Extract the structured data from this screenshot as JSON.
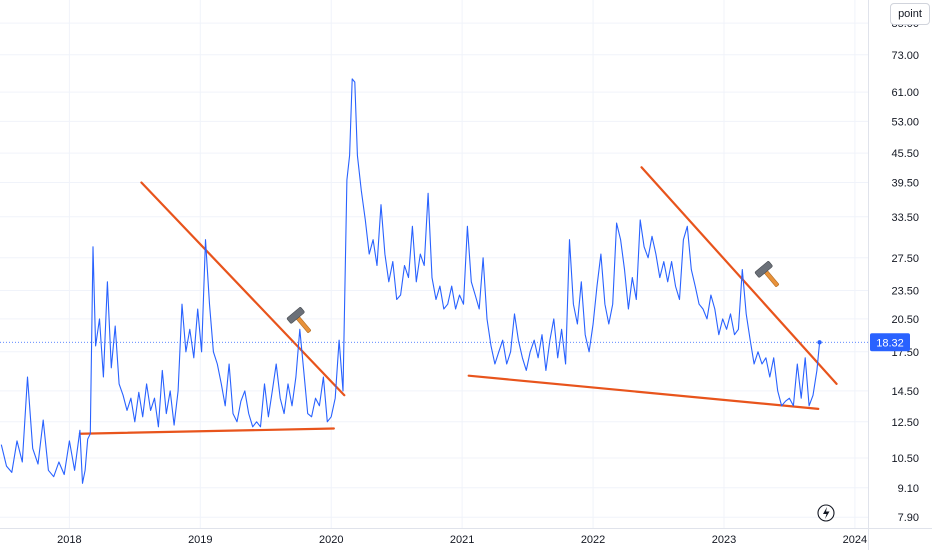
{
  "unit_button": {
    "label": "point"
  },
  "price_badge": {
    "label": "18.32",
    "color": "#2962ff"
  },
  "colors": {
    "series": "#2962ff",
    "trendline": "#e8541c",
    "grid": "#f0f3fa",
    "axis_text": "#131722"
  },
  "icons": [
    "hammer-icon",
    "hammer-icon",
    "hammer-icon",
    "lightning-icon"
  ],
  "chart_data": {
    "type": "line",
    "title": "",
    "xlabel": "",
    "ylabel": "",
    "y_scale": "log",
    "ylim": [
      7.5,
      95
    ],
    "xlim": [
      2017.47,
      2024.1
    ],
    "x_ticks": [
      {
        "value": 2018,
        "label": "2018"
      },
      {
        "value": 2019,
        "label": "2019"
      },
      {
        "value": 2020,
        "label": "2020"
      },
      {
        "value": 2021,
        "label": "2021"
      },
      {
        "value": 2022,
        "label": "2022"
      },
      {
        "value": 2023,
        "label": "2023"
      },
      {
        "value": 2024,
        "label": "2024"
      }
    ],
    "y_ticks": [
      {
        "value": 85.0,
        "label": "85.00"
      },
      {
        "value": 73.0,
        "label": "73.00"
      },
      {
        "value": 61.0,
        "label": "61.00"
      },
      {
        "value": 53.0,
        "label": "53.00"
      },
      {
        "value": 45.5,
        "label": "45.50"
      },
      {
        "value": 39.5,
        "label": "39.50"
      },
      {
        "value": 33.5,
        "label": "33.50"
      },
      {
        "value": 27.5,
        "label": "27.50"
      },
      {
        "value": 23.5,
        "label": "23.50"
      },
      {
        "value": 20.5,
        "label": "20.50"
      },
      {
        "value": 17.5,
        "label": "17.50"
      },
      {
        "value": 14.5,
        "label": "14.50"
      },
      {
        "value": 12.5,
        "label": "12.50"
      },
      {
        "value": 10.5,
        "label": "10.50"
      },
      {
        "value": 9.1,
        "label": "9.10"
      },
      {
        "value": 7.9,
        "label": "7.90"
      }
    ],
    "current_value": 18.32,
    "series": [
      {
        "values": [
          [
            2017.48,
            11.2
          ],
          [
            2017.52,
            10.1
          ],
          [
            2017.56,
            9.8
          ],
          [
            2017.6,
            11.4
          ],
          [
            2017.64,
            10.3
          ],
          [
            2017.68,
            15.5
          ],
          [
            2017.72,
            11.0
          ],
          [
            2017.76,
            10.2
          ],
          [
            2017.8,
            12.6
          ],
          [
            2017.84,
            9.9
          ],
          [
            2017.88,
            9.6
          ],
          [
            2017.92,
            10.3
          ],
          [
            2017.96,
            9.7
          ],
          [
            2018.0,
            11.4
          ],
          [
            2018.04,
            9.9
          ],
          [
            2018.08,
            12.0
          ],
          [
            2018.1,
            9.3
          ],
          [
            2018.12,
            9.9
          ],
          [
            2018.14,
            11.5
          ],
          [
            2018.16,
            11.8
          ],
          [
            2018.18,
            29.0
          ],
          [
            2018.2,
            18.0
          ],
          [
            2018.23,
            20.5
          ],
          [
            2018.26,
            15.5
          ],
          [
            2018.29,
            24.5
          ],
          [
            2018.32,
            16.2
          ],
          [
            2018.35,
            19.8
          ],
          [
            2018.38,
            15.0
          ],
          [
            2018.41,
            14.2
          ],
          [
            2018.44,
            13.2
          ],
          [
            2018.47,
            14.0
          ],
          [
            2018.5,
            12.5
          ],
          [
            2018.53,
            14.4
          ],
          [
            2018.56,
            12.8
          ],
          [
            2018.59,
            15.0
          ],
          [
            2018.62,
            13.2
          ],
          [
            2018.65,
            14.0
          ],
          [
            2018.68,
            12.2
          ],
          [
            2018.71,
            16.0
          ],
          [
            2018.74,
            13.0
          ],
          [
            2018.77,
            14.5
          ],
          [
            2018.8,
            12.3
          ],
          [
            2018.83,
            14.5
          ],
          [
            2018.86,
            22.0
          ],
          [
            2018.89,
            17.5
          ],
          [
            2018.92,
            19.5
          ],
          [
            2018.95,
            17.0
          ],
          [
            2018.98,
            21.5
          ],
          [
            2019.01,
            17.5
          ],
          [
            2019.04,
            30.0
          ],
          [
            2019.07,
            22.0
          ],
          [
            2019.1,
            17.5
          ],
          [
            2019.13,
            16.5
          ],
          [
            2019.16,
            15.0
          ],
          [
            2019.19,
            13.5
          ],
          [
            2019.22,
            16.5
          ],
          [
            2019.25,
            13.0
          ],
          [
            2019.28,
            12.5
          ],
          [
            2019.31,
            13.8
          ],
          [
            2019.34,
            14.5
          ],
          [
            2019.37,
            13.0
          ],
          [
            2019.4,
            12.2
          ],
          [
            2019.43,
            12.5
          ],
          [
            2019.46,
            12.2
          ],
          [
            2019.49,
            15.0
          ],
          [
            2019.52,
            12.8
          ],
          [
            2019.55,
            14.5
          ],
          [
            2019.58,
            16.5
          ],
          [
            2019.61,
            14.0
          ],
          [
            2019.64,
            13.0
          ],
          [
            2019.67,
            15.0
          ],
          [
            2019.7,
            13.5
          ],
          [
            2019.73,
            15.5
          ],
          [
            2019.76,
            19.5
          ],
          [
            2019.79,
            16.0
          ],
          [
            2019.82,
            13.0
          ],
          [
            2019.85,
            12.8
          ],
          [
            2019.88,
            14.0
          ],
          [
            2019.91,
            13.5
          ],
          [
            2019.94,
            15.5
          ],
          [
            2019.97,
            12.5
          ],
          [
            2020.0,
            12.8
          ],
          [
            2020.03,
            14.0
          ],
          [
            2020.06,
            18.5
          ],
          [
            2020.09,
            14.5
          ],
          [
            2020.12,
            40.0
          ],
          [
            2020.14,
            45.0
          ],
          [
            2020.16,
            65.0
          ],
          [
            2020.18,
            64.0
          ],
          [
            2020.2,
            45.0
          ],
          [
            2020.23,
            38.0
          ],
          [
            2020.26,
            33.0
          ],
          [
            2020.29,
            28.0
          ],
          [
            2020.32,
            30.0
          ],
          [
            2020.35,
            26.5
          ],
          [
            2020.38,
            35.5
          ],
          [
            2020.41,
            28.0
          ],
          [
            2020.44,
            24.5
          ],
          [
            2020.47,
            27.0
          ],
          [
            2020.5,
            22.5
          ],
          [
            2020.53,
            23.0
          ],
          [
            2020.56,
            26.5
          ],
          [
            2020.59,
            25.0
          ],
          [
            2020.62,
            32.0
          ],
          [
            2020.65,
            24.5
          ],
          [
            2020.68,
            28.0
          ],
          [
            2020.71,
            26.5
          ],
          [
            2020.74,
            37.5
          ],
          [
            2020.77,
            25.0
          ],
          [
            2020.8,
            22.5
          ],
          [
            2020.83,
            24.0
          ],
          [
            2020.86,
            21.5
          ],
          [
            2020.89,
            22.0
          ],
          [
            2020.92,
            24.0
          ],
          [
            2020.95,
            21.5
          ],
          [
            2020.98,
            23.0
          ],
          [
            2021.01,
            22.0
          ],
          [
            2021.04,
            32.0
          ],
          [
            2021.07,
            24.5
          ],
          [
            2021.1,
            23.0
          ],
          [
            2021.13,
            21.5
          ],
          [
            2021.16,
            27.5
          ],
          [
            2021.19,
            20.5
          ],
          [
            2021.22,
            18.0
          ],
          [
            2021.25,
            16.5
          ],
          [
            2021.28,
            17.5
          ],
          [
            2021.31,
            18.5
          ],
          [
            2021.34,
            16.5
          ],
          [
            2021.37,
            17.5
          ],
          [
            2021.4,
            21.0
          ],
          [
            2021.43,
            18.5
          ],
          [
            2021.46,
            17.0
          ],
          [
            2021.49,
            16.0
          ],
          [
            2021.52,
            17.5
          ],
          [
            2021.55,
            18.5
          ],
          [
            2021.58,
            17.0
          ],
          [
            2021.61,
            19.0
          ],
          [
            2021.64,
            16.0
          ],
          [
            2021.67,
            18.5
          ],
          [
            2021.7,
            20.5
          ],
          [
            2021.73,
            17.0
          ],
          [
            2021.76,
            19.5
          ],
          [
            2021.79,
            16.5
          ],
          [
            2021.82,
            30.0
          ],
          [
            2021.85,
            22.0
          ],
          [
            2021.88,
            20.0
          ],
          [
            2021.91,
            24.5
          ],
          [
            2021.94,
            19.0
          ],
          [
            2021.97,
            17.5
          ],
          [
            2022.0,
            20.0
          ],
          [
            2022.03,
            24.0
          ],
          [
            2022.06,
            28.0
          ],
          [
            2022.09,
            22.0
          ],
          [
            2022.12,
            20.0
          ],
          [
            2022.15,
            22.0
          ],
          [
            2022.18,
            32.5
          ],
          [
            2022.21,
            30.0
          ],
          [
            2022.24,
            26.0
          ],
          [
            2022.27,
            21.5
          ],
          [
            2022.3,
            25.0
          ],
          [
            2022.33,
            22.5
          ],
          [
            2022.36,
            33.0
          ],
          [
            2022.39,
            29.0
          ],
          [
            2022.42,
            27.5
          ],
          [
            2022.45,
            30.5
          ],
          [
            2022.48,
            28.0
          ],
          [
            2022.51,
            25.0
          ],
          [
            2022.54,
            27.0
          ],
          [
            2022.57,
            24.5
          ],
          [
            2022.6,
            27.0
          ],
          [
            2022.63,
            24.0
          ],
          [
            2022.66,
            22.5
          ],
          [
            2022.69,
            30.0
          ],
          [
            2022.72,
            32.0
          ],
          [
            2022.75,
            26.0
          ],
          [
            2022.78,
            24.0
          ],
          [
            2022.81,
            22.0
          ],
          [
            2022.84,
            21.5
          ],
          [
            2022.87,
            20.5
          ],
          [
            2022.9,
            23.0
          ],
          [
            2022.93,
            21.5
          ],
          [
            2022.96,
            19.0
          ],
          [
            2022.99,
            20.5
          ],
          [
            2023.02,
            19.5
          ],
          [
            2023.05,
            21.0
          ],
          [
            2023.08,
            19.0
          ],
          [
            2023.11,
            19.5
          ],
          [
            2023.14,
            26.0
          ],
          [
            2023.17,
            21.0
          ],
          [
            2023.2,
            18.5
          ],
          [
            2023.23,
            16.5
          ],
          [
            2023.26,
            17.5
          ],
          [
            2023.29,
            16.5
          ],
          [
            2023.32,
            17.0
          ],
          [
            2023.35,
            15.5
          ],
          [
            2023.38,
            17.0
          ],
          [
            2023.41,
            14.5
          ],
          [
            2023.44,
            13.5
          ],
          [
            2023.47,
            13.8
          ],
          [
            2023.5,
            14.0
          ],
          [
            2023.53,
            13.5
          ],
          [
            2023.56,
            16.5
          ],
          [
            2023.59,
            14.0
          ],
          [
            2023.62,
            17.0
          ],
          [
            2023.65,
            13.5
          ],
          [
            2023.68,
            14.2
          ],
          [
            2023.71,
            16.0
          ],
          [
            2023.73,
            18.32
          ]
        ]
      }
    ],
    "trendlines": [
      {
        "points": [
          [
            2018.08,
            11.8
          ],
          [
            2020.02,
            12.1
          ]
        ]
      },
      {
        "points": [
          [
            2018.55,
            39.5
          ],
          [
            2020.1,
            14.2
          ]
        ]
      },
      {
        "points": [
          [
            2021.05,
            15.6
          ],
          [
            2023.72,
            13.3
          ]
        ]
      },
      {
        "points": [
          [
            2022.37,
            42.5
          ],
          [
            2023.86,
            15.0
          ]
        ]
      }
    ]
  }
}
